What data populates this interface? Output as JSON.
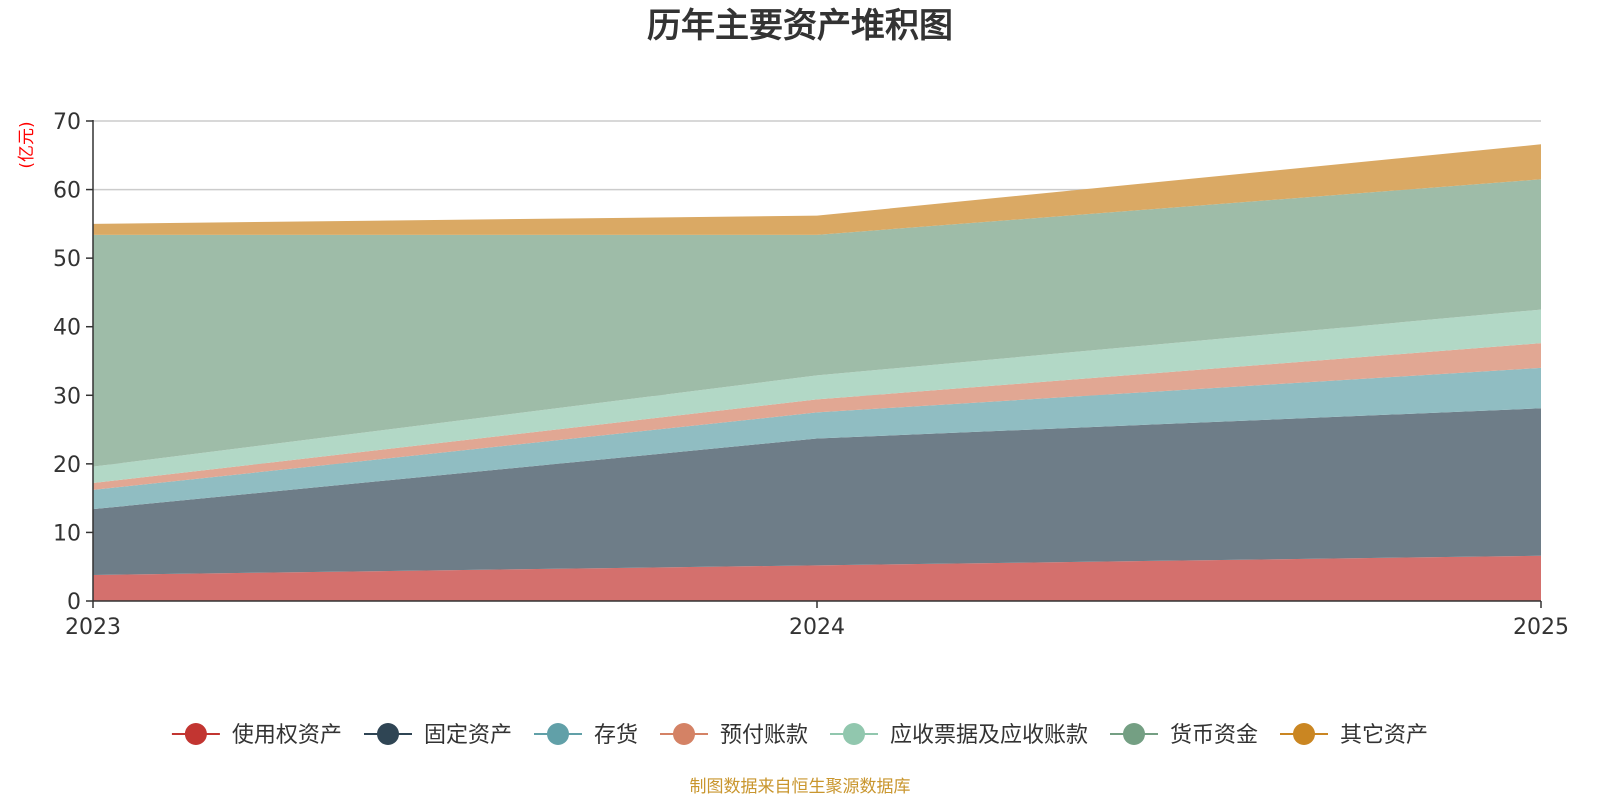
{
  "chart_data": {
    "type": "area",
    "stacked": true,
    "title": "历年主要资产堆积图",
    "ylabel": "(亿元)",
    "xlabel": "",
    "ylim": [
      0,
      70
    ],
    "yticks": [
      0,
      10,
      20,
      30,
      40,
      50,
      60,
      70
    ],
    "categories": [
      "2023",
      "2024",
      "2025"
    ],
    "grid": true,
    "legend_position": "bottom",
    "series": [
      {
        "name": "使用权资产",
        "values": [
          3.8,
          5.2,
          6.6
        ],
        "color": "#c23531",
        "fill": "#d4706d"
      },
      {
        "name": "固定资产",
        "values": [
          9.6,
          18.5,
          21.5
        ],
        "color": "#2f4554",
        "fill": "#6e7d88"
      },
      {
        "name": "存货",
        "values": [
          2.8,
          3.8,
          5.9
        ],
        "color": "#61a0a8",
        "fill": "#90bdc2"
      },
      {
        "name": "预付账款",
        "values": [
          1.0,
          1.9,
          3.6
        ],
        "color": "#d48265",
        "fill": "#e1a793"
      },
      {
        "name": "应收票据及应收账款",
        "values": [
          2.4,
          3.5,
          4.9
        ],
        "color": "#91c7ae",
        "fill": "#b2d8c6"
      },
      {
        "name": "货币资金",
        "values": [
          33.8,
          20.5,
          19.0
        ],
        "color": "#749f83",
        "fill": "#9ebca8"
      },
      {
        "name": "其它资产",
        "values": [
          1.6,
          2.8,
          5.1
        ],
        "color": "#ca8622",
        "fill": "#daa964"
      }
    ],
    "source": "制图数据来自恒生聚源数据库",
    "source_color": "#c9962e",
    "ylabel_color": "#ff0000"
  }
}
